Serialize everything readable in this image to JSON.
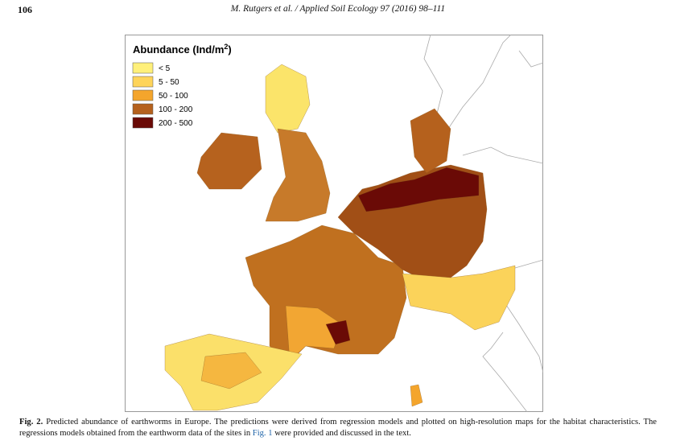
{
  "header": {
    "page_number": "106",
    "citation": "M. Rutgers et al. / Applied Soil Ecology 97 (2016) 98–111"
  },
  "figure": {
    "legend": {
      "title": {
        "text": "Abundance (Ind/m",
        "superscript": "2",
        "suffix": ")"
      },
      "items": [
        {
          "label": "< 5",
          "color": "#fff07a"
        },
        {
          "label": "5 - 50",
          "color": "#fed45a"
        },
        {
          "label": "50 - 100",
          "color": "#f4a52c"
        },
        {
          "label": "100 - 200",
          "color": "#b5611d"
        },
        {
          "label": "200 - 500",
          "color": "#6a0a06"
        }
      ]
    },
    "caption": {
      "label": "Fig. 2.",
      "text": "Predicted abundance of earthworms in Europe. The predictions were derived from regression models and plotted on high-resolution maps for the habitat characteristics. The regressions models obtained from the earthworm data of the sites in",
      "link": "Fig. 1",
      "text_end": "were provided and discussed in the text."
    }
  }
}
